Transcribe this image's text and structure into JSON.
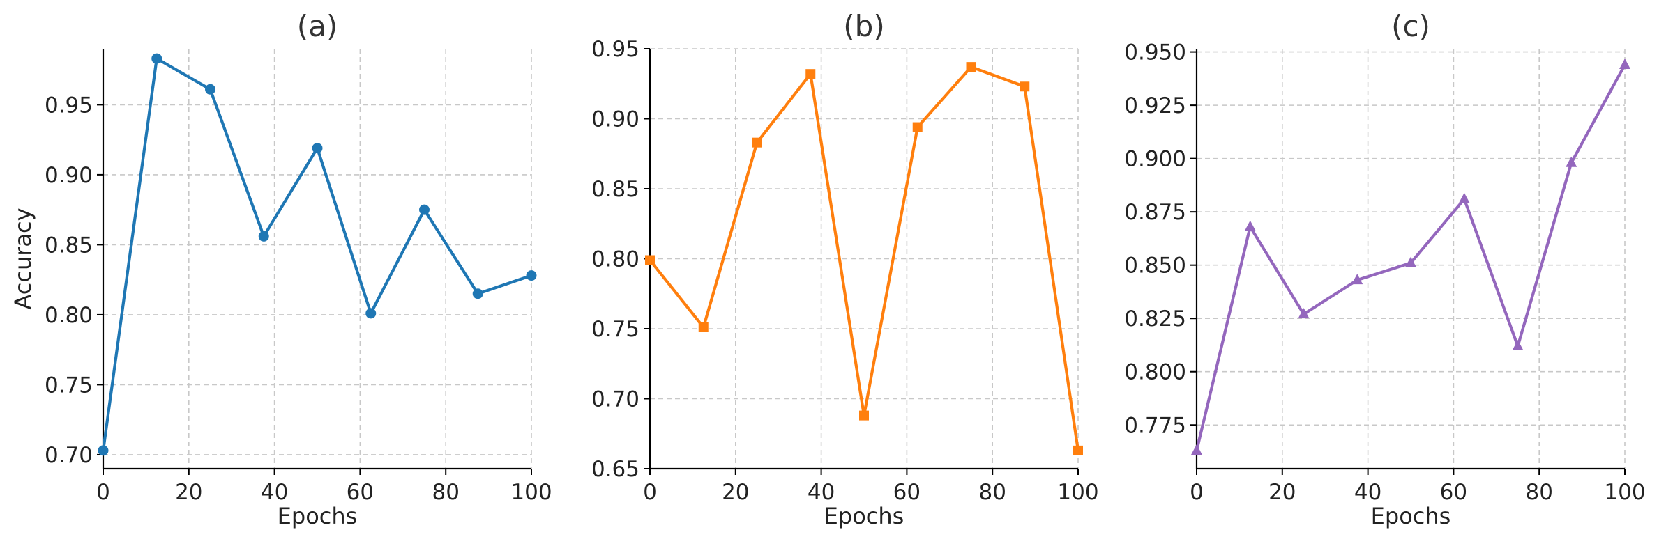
{
  "chart_data": [
    {
      "type": "line",
      "title": "(a)",
      "xlabel": "Epochs",
      "ylabel": "Accuracy",
      "xlim": [
        0,
        100
      ],
      "ylim": [
        0.69,
        0.99
      ],
      "xticks": [
        0,
        20,
        40,
        60,
        80,
        100
      ],
      "xtick_labels": [
        "0",
        "20",
        "40",
        "60",
        "80",
        "100"
      ],
      "yticks": [
        0.7,
        0.75,
        0.8,
        0.85,
        0.9,
        0.95
      ],
      "ytick_labels": [
        "0.70",
        "0.75",
        "0.80",
        "0.85",
        "0.90",
        "0.95"
      ],
      "grid": true,
      "series": [
        {
          "marker": "circle",
          "color": "#1f77b4",
          "x": [
            0,
            12.5,
            25,
            37.5,
            50,
            62.5,
            75,
            87.5,
            100
          ],
          "y": [
            0.703,
            0.983,
            0.961,
            0.856,
            0.919,
            0.801,
            0.875,
            0.815,
            0.828
          ]
        }
      ]
    },
    {
      "type": "line",
      "title": "(b)",
      "xlabel": "Epochs",
      "ylabel": "",
      "xlim": [
        0,
        100
      ],
      "ylim": [
        0.65,
        0.95
      ],
      "xticks": [
        0,
        20,
        40,
        60,
        80,
        100
      ],
      "xtick_labels": [
        "0",
        "20",
        "40",
        "60",
        "80",
        "100"
      ],
      "yticks": [
        0.65,
        0.7,
        0.75,
        0.8,
        0.85,
        0.9,
        0.95
      ],
      "ytick_labels": [
        "0.65",
        "0.70",
        "0.75",
        "0.80",
        "0.85",
        "0.90",
        "0.95"
      ],
      "grid": true,
      "series": [
        {
          "marker": "square",
          "color": "#ff7f0e",
          "x": [
            0,
            12.5,
            25,
            37.5,
            50,
            62.5,
            75,
            87.5,
            100
          ],
          "y": [
            0.799,
            0.751,
            0.883,
            0.932,
            0.688,
            0.894,
            0.937,
            0.923,
            0.663
          ]
        }
      ]
    },
    {
      "type": "line",
      "title": "(c)",
      "xlabel": "Epochs",
      "ylabel": "",
      "xlim": [
        0,
        100
      ],
      "ylim": [
        0.7545,
        0.9515
      ],
      "xticks": [
        0,
        20,
        40,
        60,
        80,
        100
      ],
      "xtick_labels": [
        "0",
        "20",
        "40",
        "60",
        "80",
        "100"
      ],
      "yticks": [
        0.775,
        0.8,
        0.825,
        0.85,
        0.875,
        0.9,
        0.925,
        0.95
      ],
      "ytick_labels": [
        "0.775",
        "0.800",
        "0.825",
        "0.850",
        "0.875",
        "0.900",
        "0.925",
        "0.950"
      ],
      "grid": true,
      "series": [
        {
          "marker": "triangle",
          "color": "#9467bd",
          "x": [
            0,
            12.5,
            25,
            37.5,
            50,
            62.5,
            75,
            87.5,
            100
          ],
          "y": [
            0.763,
            0.868,
            0.827,
            0.843,
            0.851,
            0.881,
            0.812,
            0.898,
            0.944
          ]
        }
      ]
    }
  ]
}
